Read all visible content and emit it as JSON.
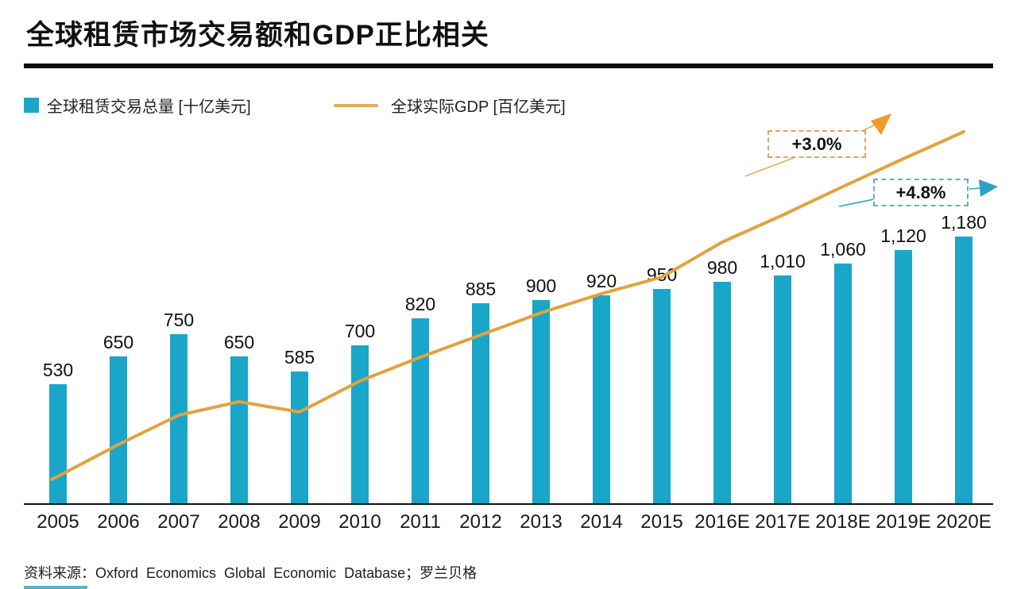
{
  "title": "全球租赁市场交易额和GDP正比相关",
  "legend": {
    "bars": {
      "label": "全球租赁交易总量 [十亿美元]"
    },
    "line": {
      "label": "全球实际GDP [百亿美元]"
    }
  },
  "annotations": {
    "gdp": {
      "label": "+3.0%"
    },
    "lease": {
      "label": "+4.8%"
    }
  },
  "source": "资料来源：Oxford Economics Global Economic Database；罗兰贝格",
  "colors": {
    "bar": "#1AA6C8",
    "line": "#E2A23F",
    "line_light": "#E3AC5C",
    "arrow_orange": "#EE9B27",
    "teal_accent": "#2BA3BF",
    "callout_orange": "#E0A469",
    "callout_teal": "#6FA9B8",
    "text": "#1A1A1A"
  },
  "chart_data": {
    "type": "bar",
    "title": "全球租赁市场交易额和GDP正比相关",
    "xlabel": "",
    "ylabel": "",
    "legend_position": "top",
    "grid": false,
    "categories": [
      "2005",
      "2006",
      "2007",
      "2008",
      "2009",
      "2010",
      "2011",
      "2012",
      "2013",
      "2014",
      "2015",
      "2016E",
      "2017E",
      "2018E",
      "2019E",
      "2020E"
    ],
    "series": [
      {
        "name": "全球租赁交易总量 [十亿美元]",
        "type": "bar",
        "values": [
          530,
          650,
          750,
          650,
          585,
          700,
          820,
          885,
          900,
          920,
          950,
          980,
          1010,
          1060,
          1120,
          1180
        ],
        "labels": [
          "530",
          "650",
          "750",
          "650",
          "585",
          "700",
          "820",
          "885",
          "900",
          "920",
          "950",
          "980",
          "1,010",
          "1,060",
          "1,120",
          "1,180"
        ]
      },
      {
        "name": "全球实际GDP [百亿美元]",
        "type": "line",
        "note": "no numeric axis or data labels shown; values are estimated percent of plot height",
        "values_pct_of_plot_height": [
          7.2,
          15.5,
          23.1,
          26.6,
          23.9,
          32.0,
          38.1,
          43.9,
          49.7,
          54.6,
          59.0,
          68.0,
          75.1,
          82.5,
          89.7,
          96.7
        ]
      }
    ],
    "annotations": [
      {
        "text": "+3.0%",
        "applies_to": "全球实际GDP [百亿美元]"
      },
      {
        "text": "+4.8%",
        "applies_to": "全球租赁交易总量 [十亿美元]"
      }
    ]
  }
}
